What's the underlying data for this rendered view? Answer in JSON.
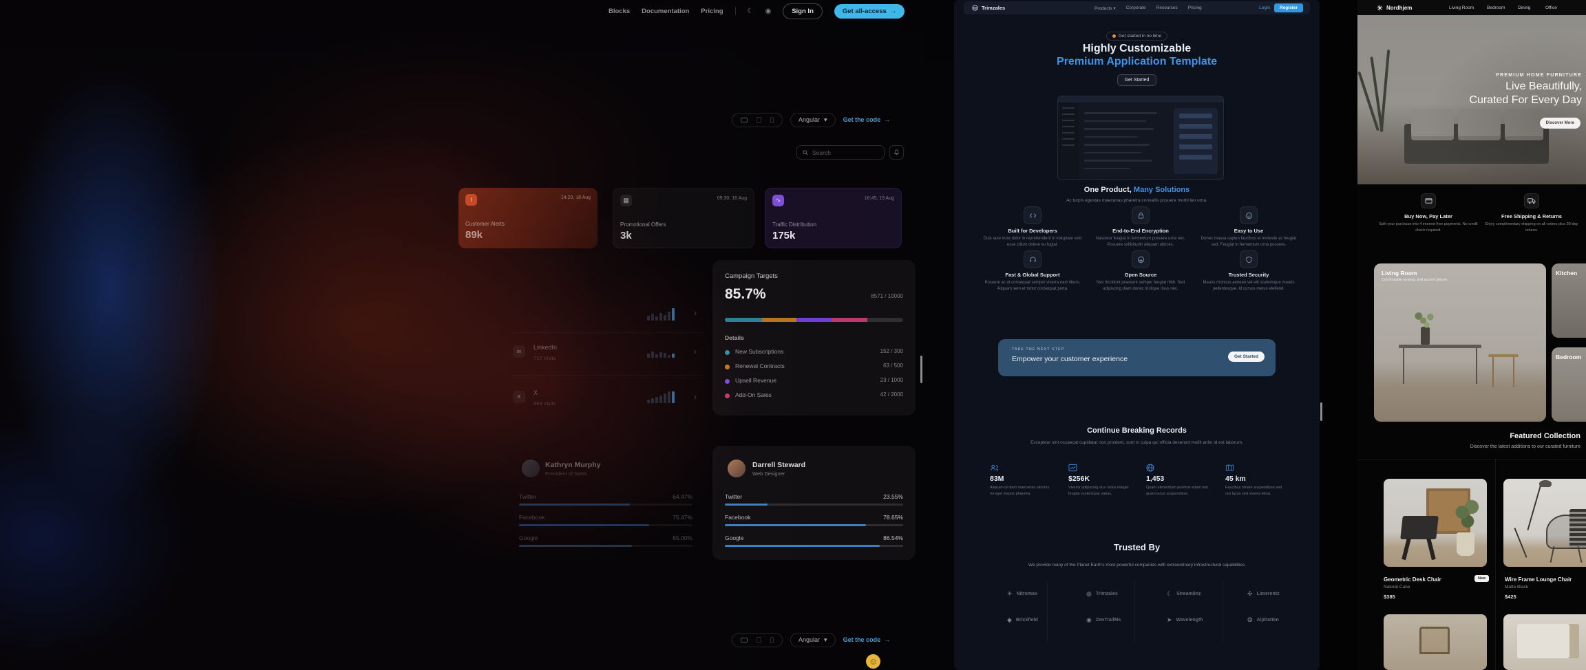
{
  "top_nav": {
    "links": [
      {
        "label": "Blocks"
      },
      {
        "label": "Documentation"
      },
      {
        "label": "Pricing"
      }
    ],
    "sign_in": "Sign In",
    "get_access": "Get all-access",
    "arrow": "→",
    "accent": "#3fb7e8"
  },
  "showcase": {
    "toolbar": {
      "framework": "Angular",
      "caret": "▾",
      "get_code": "Get the code",
      "arrow": "→"
    },
    "search_placeholder": "Search",
    "cards": [
      {
        "time": "14:20, 18 Aug",
        "title": "Customer Alerts",
        "value": "89k"
      },
      {
        "time": "09:30, 16 Aug",
        "title": "Promotional Offers",
        "value": "3k"
      },
      {
        "time": "16:45, 19 Aug",
        "title": "Traffic Distribution",
        "value": "175k"
      }
    ],
    "channels": [
      {
        "label": "",
        "visits": "",
        "icon": ""
      },
      {
        "label": "LinkedIn",
        "visits": "712 Visits",
        "icon": "in"
      },
      {
        "label": "X",
        "visits": "893 Visits",
        "icon": "X"
      }
    ],
    "chevron": "›",
    "campaign": {
      "title": "Campaign Targets",
      "percent": "85.7%",
      "ratio": "8571 / 10000",
      "details_label": "Details",
      "segments": [
        {
          "color": "#2f7f95",
          "w": 21
        },
        {
          "color": "#b5761f",
          "w": 19
        },
        {
          "color": "#6d3fd4",
          "w": 20
        },
        {
          "color": "#bb3a6e",
          "w": 20
        }
      ],
      "details": [
        {
          "label": "New Subscriptions",
          "value": "152 / 300",
          "color": "#3a8fa6"
        },
        {
          "label": "Renewal Contracts",
          "value": "63 / 500",
          "color": "#c27d22"
        },
        {
          "label": "Upsell Revenue",
          "value": "23 / 1000",
          "color": "#7c4fd6"
        },
        {
          "label": "Add-On Sales",
          "value": "42 / 2000",
          "color": "#c63a72"
        }
      ]
    },
    "profile_left": {
      "name": "Kathryn Murphy",
      "role": "President of Sales",
      "metrics": [
        {
          "label": "Twitter",
          "value": "64.47%",
          "pct": 64
        },
        {
          "label": "Facebook",
          "value": "75.47%",
          "pct": 75
        },
        {
          "label": "Google",
          "value": "65.00%",
          "pct": 65
        }
      ]
    },
    "profile_right": {
      "name": "Darrell Steward",
      "role": "Web Designer",
      "metrics": [
        {
          "label": "Twitter",
          "value": "23.55%",
          "pct": 24
        },
        {
          "label": "Facebook",
          "value": "78.65%",
          "pct": 79
        },
        {
          "label": "Google",
          "value": "86.54%",
          "pct": 87
        }
      ]
    }
  },
  "template_site": {
    "nav": {
      "brand": "Trimzales",
      "links": [
        {
          "label": "Products ▾"
        },
        {
          "label": "Corporate"
        },
        {
          "label": "Resources"
        },
        {
          "label": "Pricing"
        }
      ],
      "login": "Login",
      "register": "Register"
    },
    "hero": {
      "badge": "Get started in no time",
      "title_line1": "Highly Customizable",
      "title_line2": "Premium Application Template",
      "cta": "Get Started"
    },
    "solutions": {
      "title_plain": "One Product, ",
      "title_accent": "Many Solutions",
      "subtitle": "Ac turpis egestas maecenas pharetra convallis posuere morbi leo urna.",
      "items": [
        {
          "title": "Built for Developers",
          "desc": "Duis aute irure dolor in reprehenderit in voluptate velit esse cillum dolore eu fugiat."
        },
        {
          "title": "End-to-End Encryption",
          "desc": "Nascetur feugiat in fermentum posuere urna nec. Posuere sollicitudin aliquam ultrices."
        },
        {
          "title": "Easy to Use",
          "desc": "Donec massa sapien faucibus et molestie ac feugiat sed. Feugiat in fermentum urna posuere."
        },
        {
          "title": "Fast & Global Support",
          "desc": "Posuere ac ut consequat semper viverra nam libero. Aliquam sem et tortor consequat porta."
        },
        {
          "title": "Open Source",
          "desc": "Nec tincidunt praesent semper feugiat nibh. Sed adipiscing diam donec tristique risus nec."
        },
        {
          "title": "Trusted Security",
          "desc": "Mauris rhoncus aenean vel elit scelerisque mauris pellentesque. Id cursus metus eleifend."
        }
      ]
    },
    "cta_banner": {
      "eyebrow": "TAKE THE NEXT STEP",
      "title": "Empower your customer experience",
      "button": "Get Started"
    },
    "records": {
      "title": "Continue Breaking Records",
      "subtitle": "Excepteur sint occaecat cupidatat non proident, sunt in culpa qui officia deserunt mollit anim id est laborum.",
      "stats": [
        {
          "value": "83M",
          "caption": "Aliquam id diam maecenas ultricies mi eget mauris pharetra."
        },
        {
          "value": "$256K",
          "caption": "Viverra adipiscing at in tellus integer feugiat scelerisque varius."
        },
        {
          "value": "1,453",
          "caption": "Quam elementum pulvinar etiam non quam lacus suspendisse."
        },
        {
          "value": "45 km",
          "caption": "Faucibus ornare suspendisse sed nisi lacus sed viverra tellus."
        }
      ]
    },
    "trusted": {
      "title": "Trusted By",
      "subtitle": "We provide many of the Planet Earth's most powerful companies with extraordinary infrastructural capabilities.",
      "logos": [
        {
          "glyph": "✳",
          "name": "Nitromax"
        },
        {
          "glyph": "◍",
          "name": "Trimzales"
        },
        {
          "glyph": "☾",
          "name": "Streamlinz"
        },
        {
          "glyph": "✣",
          "name": "Limerentz"
        },
        {
          "glyph": "◆",
          "name": "Brickfield"
        },
        {
          "glyph": "◉",
          "name": "ZenTrailMs"
        },
        {
          "glyph": "➤",
          "name": "Wavelength"
        },
        {
          "glyph": "❂",
          "name": "Alphatten"
        }
      ]
    },
    "accent": "#3f93e8"
  },
  "furniture_site": {
    "nav": {
      "brand": "Nordhjem",
      "links": [
        {
          "label": "Living Room"
        },
        {
          "label": "Bedroom"
        },
        {
          "label": "Dining"
        },
        {
          "label": "Office"
        }
      ]
    },
    "hero": {
      "eyebrow": "PREMIUM HOME FURNITURE",
      "title_line1": "Live Beautifully,",
      "title_line2": "Curated For Every Day",
      "cta": "Discover More"
    },
    "features": [
      {
        "title": "Buy Now, Pay Later",
        "desc": "Split your purchase into 4 interest-free payments. No credit check required."
      },
      {
        "title": "Free Shipping & Returns",
        "desc": "Enjoy complimentary shipping on all orders plus 30-day returns."
      }
    ],
    "categories": [
      {
        "title": "Living Room",
        "subtitle": "Comfortable seating and accent pieces"
      },
      {
        "title": "Kitchen",
        "subtitle": ""
      },
      {
        "title": "Bedroom",
        "subtitle": ""
      }
    ],
    "featured": {
      "title": "Featured Collection",
      "subtitle": "Discover the latest additions to our curated furniture"
    },
    "products": [
      {
        "name": "Geometric Desk Chair",
        "material": "Natural Cane",
        "price": "$385",
        "badge": "New"
      },
      {
        "name": "Wire Frame Lounge Chair",
        "material": "Matte Black",
        "price": "$425"
      }
    ]
  }
}
